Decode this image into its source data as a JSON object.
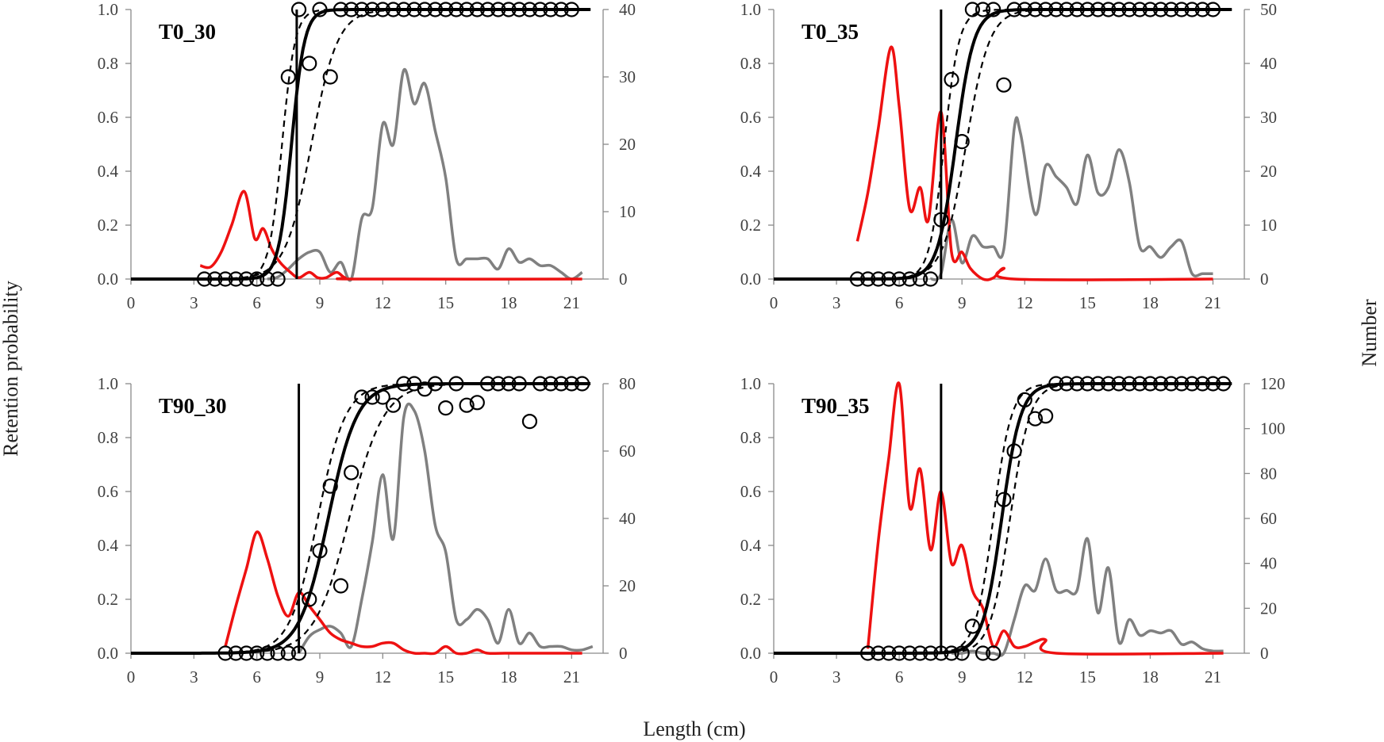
{
  "figure": {
    "xlabel": "Length (cm)",
    "ylabel_left": "Retention probability",
    "ylabel_right": "Number",
    "colors": {
      "fit": "#000000",
      "ci": "#000000",
      "codend": "#808080",
      "cover": "#ee1111",
      "obs": "#000000",
      "l50": "#000000"
    }
  },
  "chart_data": [
    {
      "type": "line",
      "title": "T0_30",
      "xlim": [
        0,
        22.5
      ],
      "xticks": [
        0,
        3,
        6,
        9,
        12,
        15,
        18,
        21
      ],
      "ylim": [
        0,
        1
      ],
      "yticks": [
        "0.0",
        "0.2",
        "0.4",
        "0.6",
        "0.8",
        "1.0"
      ],
      "y2lim": [
        0,
        40
      ],
      "y2ticks": [
        0,
        10,
        20,
        30,
        40
      ],
      "fit": {
        "l50": 7.65,
        "k": 3.2
      },
      "ci_lower": {
        "l50": 7.2,
        "k": 3.2
      },
      "ci_upper": {
        "l50": 8.6,
        "k": 1.6
      },
      "l50_line": 7.9,
      "observed": {
        "x": [
          3.5,
          4,
          4.5,
          5,
          5.5,
          6,
          6.5,
          7,
          7.5,
          8,
          8.5,
          9,
          9.5,
          10,
          10.5,
          11,
          11.5,
          12,
          12.5,
          13,
          13.5,
          14,
          14.5,
          15,
          15.5,
          16,
          16.5,
          17,
          17.5,
          18,
          18.5,
          19,
          19.5,
          20,
          20.5,
          21
        ],
        "y": [
          0,
          0,
          0,
          0,
          0,
          0,
          0,
          0,
          0.75,
          1,
          0.8,
          1,
          0.75,
          1,
          1,
          1,
          1,
          1,
          1,
          1,
          1,
          1,
          1,
          1,
          1,
          1,
          1,
          1,
          1,
          1,
          1,
          1,
          1,
          1,
          1,
          1
        ]
      },
      "codend": {
        "x": [
          6.5,
          7,
          7.5,
          8,
          8.5,
          9,
          9.5,
          10,
          10.5,
          11,
          11.5,
          12,
          12.5,
          13,
          13.5,
          14,
          14.5,
          15,
          15.5,
          16,
          16.5,
          17,
          17.5,
          18,
          18.5,
          19,
          19.5,
          20,
          20.5,
          21,
          21.5
        ],
        "y": [
          0,
          0.3,
          1.5,
          3,
          4,
          4,
          1,
          2.5,
          0,
          9,
          10.5,
          23,
          20,
          31,
          26,
          29,
          22,
          15,
          3,
          3,
          3,
          3,
          1.5,
          4.5,
          2.5,
          3,
          2,
          2,
          1,
          0,
          1
        ]
      },
      "cover": {
        "x": [
          3.3,
          3.8,
          4.3,
          4.8,
          5.4,
          5.9,
          6.3,
          6.7,
          7.1,
          7.6,
          8,
          8.5,
          8.9,
          9.3,
          9.8,
          10.2,
          10.8,
          21.5
        ],
        "y": [
          2,
          1.8,
          4,
          8,
          13,
          6,
          7.5,
          4.5,
          2.5,
          1,
          0.2,
          1,
          0.2,
          0.2,
          1,
          0.2,
          0,
          0
        ]
      }
    },
    {
      "type": "line",
      "title": "T0_35",
      "xlim": [
        0,
        22.5
      ],
      "xticks": [
        0,
        3,
        6,
        9,
        12,
        15,
        18,
        21
      ],
      "ylim": [
        0,
        1
      ],
      "yticks": [
        "0.0",
        "0.2",
        "0.4",
        "0.6",
        "0.8",
        "1.0"
      ],
      "y2lim": [
        0,
        50
      ],
      "y2ticks": [
        0,
        10,
        20,
        30,
        40,
        50
      ],
      "fit": {
        "l50": 8.7,
        "k": 2.3
      },
      "ci_lower": {
        "l50": 8.15,
        "k": 2.8
      },
      "ci_upper": {
        "l50": 9.2,
        "k": 1.8
      },
      "l50_line": 8.0,
      "observed": {
        "x": [
          4,
          4.5,
          5,
          5.5,
          6,
          6.5,
          7,
          7.5,
          8,
          8.5,
          9,
          9.5,
          10,
          10.5,
          11,
          11.5,
          12,
          12.5,
          13,
          13.5,
          14,
          14.5,
          15,
          15.5,
          16,
          16.5,
          17,
          17.5,
          18,
          18.5,
          19,
          19.5,
          20,
          20.5,
          21
        ],
        "y": [
          0,
          0,
          0,
          0,
          0,
          0,
          0,
          0,
          0.22,
          0.74,
          0.51,
          1,
          1,
          1,
          0.72,
          1,
          1,
          1,
          1,
          1,
          1,
          1,
          1,
          1,
          1,
          1,
          1,
          1,
          1,
          1,
          1,
          1,
          1,
          1,
          1
        ]
      },
      "codend": {
        "x": [
          7.5,
          8,
          8.5,
          9,
          9.5,
          10,
          10.5,
          11,
          11.5,
          11.8,
          12.5,
          13,
          13.5,
          14,
          14.5,
          15,
          15.5,
          16,
          16.5,
          17,
          17.5,
          18,
          18.5,
          19,
          19.5,
          20,
          20.5,
          21
        ],
        "y": [
          0,
          1,
          11,
          3,
          8,
          6,
          6,
          5.5,
          28,
          27,
          12,
          21,
          19,
          17,
          14,
          23,
          16,
          17,
          24,
          18,
          6,
          6,
          4,
          6,
          7,
          1,
          1,
          1
        ]
      },
      "cover": {
        "x": [
          4,
          4.5,
          5,
          5.6,
          6,
          6.5,
          7,
          7.4,
          8,
          8.5,
          9,
          9.4,
          10,
          10.5,
          11,
          11.5,
          21
        ],
        "y": [
          7,
          16,
          28,
          43,
          32,
          13,
          17,
          11,
          31,
          5,
          5,
          2,
          0,
          0.2,
          2,
          0,
          0
        ]
      }
    },
    {
      "type": "line",
      "title": "T90_30",
      "xlim": [
        0,
        22.5
      ],
      "xticks": [
        0,
        3,
        6,
        9,
        12,
        15,
        18,
        21
      ],
      "ylim": [
        0,
        1
      ],
      "yticks": [
        "0.0",
        "0.2",
        "0.4",
        "0.6",
        "0.8",
        "1.0"
      ],
      "y2lim": [
        0,
        80
      ],
      "y2ticks": [
        0,
        20,
        40,
        60,
        80
      ],
      "fit": {
        "l50": 9.4,
        "k": 1.45
      },
      "ci_lower": {
        "l50": 8.9,
        "k": 1.5
      },
      "ci_upper": {
        "l50": 10.4,
        "k": 1.2
      },
      "l50_line": 8.0,
      "observed": {
        "x": [
          4.5,
          5,
          5.5,
          6,
          6.5,
          7,
          7.5,
          8,
          8.5,
          9,
          9.5,
          10,
          10.5,
          11,
          11.5,
          12,
          12.5,
          13,
          13.5,
          14,
          14.5,
          15,
          15.5,
          16,
          16.5,
          17,
          17.5,
          18,
          18.5,
          19,
          19.5,
          20,
          20.5,
          21,
          21.5
        ],
        "y": [
          0,
          0,
          0,
          0,
          0,
          0,
          0,
          0,
          0.2,
          0.38,
          0.62,
          0.25,
          0.67,
          0.95,
          0.95,
          0.95,
          0.92,
          1,
          1,
          0.98,
          1,
          0.91,
          1,
          0.92,
          0.93,
          1,
          1,
          1,
          1,
          0.86,
          1,
          1,
          1,
          1,
          1
        ]
      },
      "codend": {
        "x": [
          8,
          8.5,
          9,
          9.5,
          10,
          10.5,
          11,
          11.5,
          12,
          12.5,
          13,
          13.5,
          14,
          14.5,
          15,
          15.5,
          16,
          16.5,
          17,
          17.5,
          18,
          18.5,
          19,
          19.5,
          20,
          20.5,
          21,
          21.5,
          22
        ],
        "y": [
          0,
          5,
          7,
          8,
          6,
          2,
          16,
          33,
          53,
          34,
          70,
          72,
          60,
          38,
          30,
          10,
          10,
          13,
          10,
          3,
          13,
          3,
          6,
          2,
          2,
          2,
          1,
          1,
          2
        ]
      },
      "cover": {
        "x": [
          4.5,
          5,
          5.5,
          6,
          6.5,
          7,
          7.5,
          8,
          8.5,
          9,
          9.5,
          10,
          10.5,
          11,
          11.5,
          12,
          12.5,
          13,
          13.5,
          14,
          14.5,
          15,
          15.5,
          16,
          16.5,
          17,
          18,
          21.5
        ],
        "y": [
          2,
          14,
          25,
          36,
          28,
          17,
          11,
          18,
          14,
          10,
          6,
          4,
          3,
          2,
          2,
          3,
          3,
          1,
          0,
          0,
          0,
          2,
          0,
          0,
          1,
          0,
          0,
          0
        ]
      }
    },
    {
      "type": "line",
      "title": "T90_35",
      "xlim": [
        0,
        22.5
      ],
      "xticks": [
        0,
        3,
        6,
        9,
        12,
        15,
        18,
        21
      ],
      "ylim": [
        0,
        1
      ],
      "yticks": [
        "0.0",
        "0.2",
        "0.4",
        "0.6",
        "0.8",
        "1.0"
      ],
      "y2lim": [
        0,
        120
      ],
      "y2ticks": [
        0,
        20,
        40,
        60,
        80,
        100,
        120
      ],
      "fit": {
        "l50": 10.9,
        "k": 2.2
      },
      "ci_lower": {
        "l50": 10.5,
        "k": 2.3
      },
      "ci_upper": {
        "l50": 11.3,
        "k": 2.1
      },
      "l50_line": 8.0,
      "observed": {
        "x": [
          4.5,
          5,
          5.5,
          6,
          6.5,
          7,
          7.5,
          8,
          8.5,
          9,
          9.5,
          10,
          10.5,
          11,
          11.5,
          12,
          12.5,
          13,
          13.5,
          14,
          14.5,
          15,
          15.5,
          16,
          16.5,
          17,
          17.5,
          18,
          18.5,
          19,
          19.5,
          20,
          20.5,
          21,
          21.5
        ],
        "y": [
          0,
          0,
          0,
          0,
          0,
          0,
          0,
          0,
          0,
          0,
          0.1,
          0,
          0,
          0.57,
          0.75,
          0.94,
          0.87,
          0.88,
          1,
          1,
          1,
          1,
          1,
          1,
          1,
          1,
          1,
          1,
          1,
          1,
          1,
          1,
          1,
          1,
          1
        ]
      },
      "codend": {
        "x": [
          8.5,
          9,
          9.5,
          10,
          10.5,
          11,
          11.5,
          12,
          12.5,
          13,
          13.5,
          14,
          14.5,
          15,
          15.5,
          16,
          16.5,
          17,
          17.5,
          18,
          18.5,
          19,
          19.5,
          20,
          20.5,
          21,
          21.5
        ],
        "y": [
          0,
          0,
          1,
          0,
          0,
          0,
          15,
          30,
          28,
          42,
          28,
          28,
          28,
          51,
          18,
          38,
          5,
          15,
          8,
          10,
          9,
          10,
          4,
          5,
          2,
          1,
          1
        ]
      },
      "cover": {
        "x": [
          4.5,
          5,
          5.5,
          6,
          6.5,
          7,
          7.5,
          8,
          8.5,
          9,
          9.5,
          10,
          10.5,
          11,
          11.5,
          12,
          12.5,
          13,
          13.5,
          21.5
        ],
        "y": [
          2,
          50,
          87,
          120,
          65,
          82,
          46,
          72,
          40,
          48,
          28,
          20,
          3,
          10,
          3,
          3,
          5,
          6,
          0,
          0
        ]
      }
    }
  ]
}
